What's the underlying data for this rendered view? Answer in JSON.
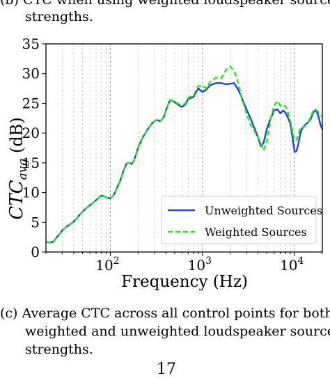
{
  "top_caption": {
    "line1": "(b) CTC when using weighted loudspeaker source",
    "line2": "strengths."
  },
  "chart_data": {
    "type": "line",
    "xlabel": "Frequency (Hz)",
    "ylabel_main": "CTC",
    "ylabel_sub": "avg",
    "ylabel_unit": " (dB)",
    "x_scale": "log",
    "xlim": [
      20,
      20000
    ],
    "ylim": [
      0,
      35
    ],
    "yticks": [
      0,
      5,
      10,
      15,
      20,
      25,
      30,
      35
    ],
    "xticks": [
      {
        "value": 100,
        "base": "10",
        "exp": "2"
      },
      {
        "value": 1000,
        "base": "10",
        "exp": "3"
      },
      {
        "value": 10000,
        "base": "10",
        "exp": "4"
      }
    ],
    "grid": "vertical major and minor, dashed",
    "legend_position": "lower-right",
    "series": [
      {
        "name": "Unweighted Sources",
        "color": "#1f45d6",
        "style": "solid",
        "points": [
          [
            20,
            1.7
          ],
          [
            22,
            1.6
          ],
          [
            24,
            1.7
          ],
          [
            26,
            2.4
          ],
          [
            28,
            3.0
          ],
          [
            30,
            3.6
          ],
          [
            33,
            4.2
          ],
          [
            36,
            4.6
          ],
          [
            40,
            5.1
          ],
          [
            45,
            6.0
          ],
          [
            50,
            6.8
          ],
          [
            56,
            7.5
          ],
          [
            63,
            8.1
          ],
          [
            71,
            8.8
          ],
          [
            80,
            9.5
          ],
          [
            90,
            9.2
          ],
          [
            100,
            9.0
          ],
          [
            110,
            9.7
          ],
          [
            120,
            11.0
          ],
          [
            130,
            12.3
          ],
          [
            140,
            13.8
          ],
          [
            150,
            14.9
          ],
          [
            160,
            15.0
          ],
          [
            170,
            14.8
          ],
          [
            180,
            15.3
          ],
          [
            200,
            17.5
          ],
          [
            220,
            19.0
          ],
          [
            250,
            20.5
          ],
          [
            280,
            21.5
          ],
          [
            300,
            22.0
          ],
          [
            320,
            22.2
          ],
          [
            350,
            22.0
          ],
          [
            380,
            22.7
          ],
          [
            420,
            24.7
          ],
          [
            450,
            25.6
          ],
          [
            500,
            25.2
          ],
          [
            550,
            24.7
          ],
          [
            600,
            24.4
          ],
          [
            650,
            24.8
          ],
          [
            700,
            25.7
          ],
          [
            800,
            26.1
          ],
          [
            900,
            27.5
          ],
          [
            1000,
            26.9
          ],
          [
            1100,
            27.3
          ],
          [
            1200,
            28.0
          ],
          [
            1400,
            28.4
          ],
          [
            1600,
            28.4
          ],
          [
            1800,
            28.2
          ],
          [
            2000,
            28.3
          ],
          [
            2200,
            28.4
          ],
          [
            2400,
            27.5
          ],
          [
            2600,
            26.4
          ],
          [
            2800,
            25.1
          ],
          [
            3000,
            24.0
          ],
          [
            3300,
            22.6
          ],
          [
            3600,
            21.1
          ],
          [
            4000,
            19.3
          ],
          [
            4300,
            17.8
          ],
          [
            4600,
            18.3
          ],
          [
            5000,
            20.7
          ],
          [
            5500,
            22.5
          ],
          [
            6000,
            23.8
          ],
          [
            6500,
            24.0
          ],
          [
            7000,
            23.3
          ],
          [
            7500,
            23.8
          ],
          [
            8000,
            23.4
          ],
          [
            8500,
            22.5
          ],
          [
            9000,
            21.5
          ],
          [
            9500,
            19.2
          ],
          [
            10000,
            16.8
          ],
          [
            10500,
            17.0
          ],
          [
            11000,
            18.2
          ],
          [
            11500,
            19.8
          ],
          [
            12000,
            20.7
          ],
          [
            13000,
            21.4
          ],
          [
            14000,
            21.8
          ],
          [
            15000,
            22.4
          ],
          [
            16000,
            23.5
          ],
          [
            17000,
            23.9
          ],
          [
            18000,
            23.0
          ],
          [
            19000,
            21.5
          ],
          [
            20000,
            20.6
          ]
        ]
      },
      {
        "name": "Weighted Sources",
        "color": "#22e61c",
        "style": "dashed",
        "points": [
          [
            20,
            1.7
          ],
          [
            22,
            1.6
          ],
          [
            24,
            1.7
          ],
          [
            26,
            2.4
          ],
          [
            28,
            3.0
          ],
          [
            30,
            3.6
          ],
          [
            33,
            4.2
          ],
          [
            36,
            4.6
          ],
          [
            40,
            5.1
          ],
          [
            45,
            6.0
          ],
          [
            50,
            6.8
          ],
          [
            56,
            7.5
          ],
          [
            63,
            8.1
          ],
          [
            71,
            8.8
          ],
          [
            80,
            9.5
          ],
          [
            90,
            9.2
          ],
          [
            100,
            9.0
          ],
          [
            110,
            9.7
          ],
          [
            120,
            11.0
          ],
          [
            130,
            12.3
          ],
          [
            140,
            13.8
          ],
          [
            150,
            14.9
          ],
          [
            160,
            15.0
          ],
          [
            170,
            14.8
          ],
          [
            180,
            15.3
          ],
          [
            200,
            17.5
          ],
          [
            220,
            19.0
          ],
          [
            250,
            20.5
          ],
          [
            280,
            21.5
          ],
          [
            300,
            22.0
          ],
          [
            320,
            22.2
          ],
          [
            350,
            22.0
          ],
          [
            380,
            22.7
          ],
          [
            420,
            24.7
          ],
          [
            450,
            25.6
          ],
          [
            500,
            25.3
          ],
          [
            550,
            24.9
          ],
          [
            600,
            24.6
          ],
          [
            650,
            25.0
          ],
          [
            700,
            25.9
          ],
          [
            800,
            26.4
          ],
          [
            900,
            27.9
          ],
          [
            1000,
            28.0
          ],
          [
            1100,
            27.5
          ],
          [
            1200,
            28.6
          ],
          [
            1400,
            29.3
          ],
          [
            1600,
            29.2
          ],
          [
            1800,
            30.6
          ],
          [
            2000,
            31.2
          ],
          [
            2200,
            30.5
          ],
          [
            2400,
            28.8
          ],
          [
            2600,
            26.5
          ],
          [
            2800,
            24.8
          ],
          [
            3000,
            23.3
          ],
          [
            3300,
            21.5
          ],
          [
            3600,
            20.5
          ],
          [
            4000,
            19.3
          ],
          [
            4300,
            18.3
          ],
          [
            4600,
            17.1
          ],
          [
            5000,
            18.6
          ],
          [
            5500,
            22.4
          ],
          [
            6000,
            24.6
          ],
          [
            6500,
            25.4
          ],
          [
            7000,
            24.6
          ],
          [
            7500,
            24.8
          ],
          [
            8000,
            24.4
          ],
          [
            8500,
            23.4
          ],
          [
            9000,
            22.0
          ],
          [
            9500,
            20.2
          ],
          [
            10000,
            18.8
          ],
          [
            10500,
            18.8
          ],
          [
            11000,
            19.8
          ],
          [
            11500,
            20.7
          ],
          [
            12000,
            20.8
          ],
          [
            13000,
            21.2
          ],
          [
            14000,
            21.8
          ],
          [
            15000,
            22.8
          ],
          [
            16000,
            23.8
          ],
          [
            17000,
            23.9
          ],
          [
            18000,
            23.6
          ],
          [
            19000,
            23.0
          ],
          [
            20000,
            22.8
          ]
        ]
      }
    ]
  },
  "bottom_caption": {
    "line1a": "(c) Average CTC across all control points for both",
    "line2": "weighted and unweighted loudspeaker source",
    "line3": "strengths."
  },
  "page_number": "17"
}
